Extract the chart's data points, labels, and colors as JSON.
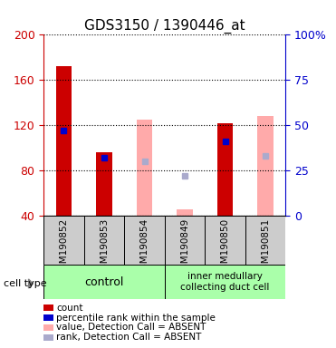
{
  "title": "GDS3150 / 1390446_at",
  "samples": [
    "GSM190852",
    "GSM190853",
    "GSM190854",
    "GSM190849",
    "GSM190850",
    "GSM190851"
  ],
  "ylim": [
    40,
    200
  ],
  "yticks_left": [
    40,
    80,
    120,
    160,
    200
  ],
  "yticks_right": [
    0,
    25,
    50,
    75,
    100
  ],
  "ytick_right_labels": [
    "0",
    "25",
    "50",
    "75",
    "100%"
  ],
  "bar_width": 0.4,
  "red_bars": {
    "indices": [
      0,
      1,
      4
    ],
    "values": [
      172,
      96,
      122
    ]
  },
  "pink_bars": {
    "indices": [
      2,
      3,
      5
    ],
    "values": [
      125,
      46,
      128
    ]
  },
  "blue_dots": {
    "indices": [
      0,
      1,
      4
    ],
    "percentiles": [
      47,
      32,
      41
    ]
  },
  "lightblue_dots": {
    "indices": [
      2,
      3,
      5
    ],
    "percentiles": [
      30,
      22,
      33
    ]
  },
  "colors": {
    "red_bar": "#cc0000",
    "pink_bar": "#ffaaaa",
    "blue_dot": "#0000cc",
    "lightblue_dot": "#aaaacc",
    "axis_left": "#cc0000",
    "axis_right": "#0000cc",
    "label_bg": "#aaffaa",
    "sample_bg": "#cccccc"
  },
  "legend_items": [
    {
      "color": "#cc0000",
      "label": "count"
    },
    {
      "color": "#0000cc",
      "label": "percentile rank within the sample"
    },
    {
      "color": "#ffaaaa",
      "label": "value, Detection Call = ABSENT"
    },
    {
      "color": "#aaaacc",
      "label": "rank, Detection Call = ABSENT"
    }
  ]
}
